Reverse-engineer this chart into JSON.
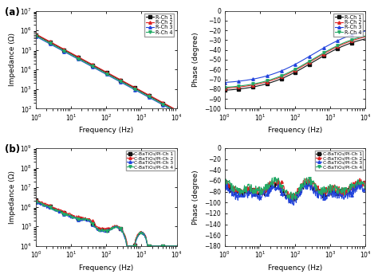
{
  "panel_a_title": "(a)",
  "panel_b_title": "(b)",
  "colors": [
    "#111111",
    "#dd2222",
    "#2244dd",
    "#22aa66"
  ],
  "markers": [
    "s",
    "^",
    "^",
    "v"
  ],
  "legend_R": [
    "R-Ch 1",
    "R-Ch 2",
    "R-Ch 3",
    "R-Ch 4"
  ],
  "legend_C": [
    "C-BaTiO₃/PI-Ch 1",
    "C-BaTiO₃/PI-Ch 2",
    "C-BaTiO₃/PI-Ch 3",
    "C-BaTiO₃/PI-Ch 4"
  ],
  "xlabel": "Frequency (Hz)",
  "ylabel_imp": "Impedance (Ω)",
  "ylabel_phase": "Phase (degree)",
  "background": "#f0f0f0",
  "marker_size": 2.5,
  "line_width": 0.8,
  "font_size": 6.5
}
